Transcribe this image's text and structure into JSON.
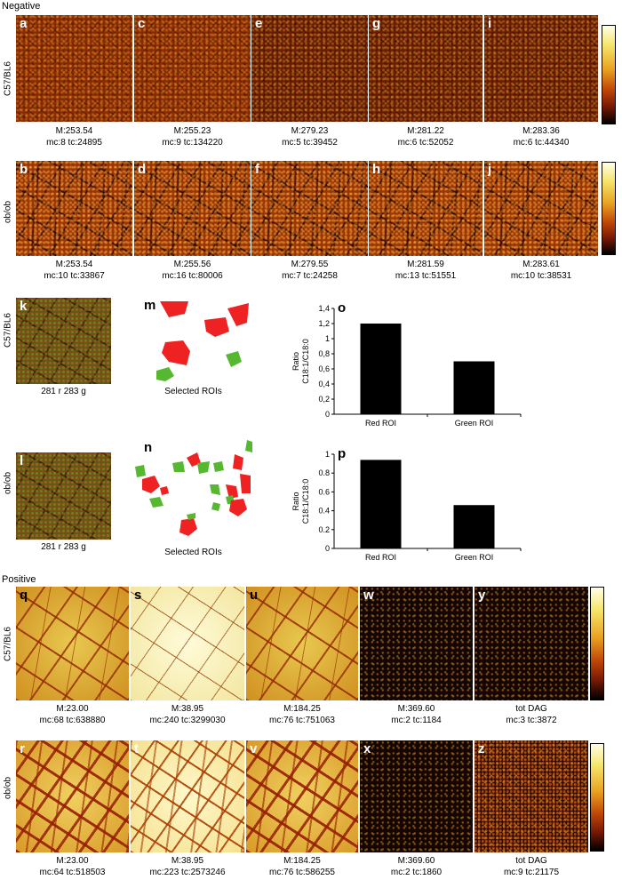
{
  "sections": {
    "negative": "Negative",
    "positive": "Positive"
  },
  "row_labels": {
    "c57": "C57/BL6",
    "obob": "ob/ob"
  },
  "neg_c57": [
    {
      "letter": "a",
      "line1": "M:253.54",
      "line2": "mc:8 tc:24895"
    },
    {
      "letter": "c",
      "line1": "M:255.23",
      "line2": "mc:9 tc:134220"
    },
    {
      "letter": "e",
      "line1": "M:279.23",
      "line2": "mc:5 tc:39452"
    },
    {
      "letter": "g",
      "line1": "M:281.22",
      "line2": "mc:6 tc:52052"
    },
    {
      "letter": "i",
      "line1": "M:283.36",
      "line2": "mc:6 tc:44340"
    }
  ],
  "neg_obob": [
    {
      "letter": "b",
      "line1": "M:253.54",
      "line2": "mc:10 tc:33867"
    },
    {
      "letter": "d",
      "line1": "M:255.56",
      "line2": "mc:16 tc:80006"
    },
    {
      "letter": "f",
      "line1": "M:279.55",
      "line2": "mc:7 tc:24258"
    },
    {
      "letter": "h",
      "line1": "M:281.59",
      "line2": "mc:13 tc:51551"
    },
    {
      "letter": "j",
      "line1": "M:283.61",
      "line2": "mc:10 tc:38531"
    }
  ],
  "overlay": {
    "k": {
      "letter": "k",
      "caption": "281 r 283 g"
    },
    "l": {
      "letter": "l",
      "caption": "281 r 283 g"
    },
    "m": {
      "letter": "m",
      "caption": "Selected ROIs"
    },
    "n": {
      "letter": "n",
      "caption": "Selected ROIs"
    }
  },
  "chart_data": [
    {
      "panel": "o",
      "type": "bar",
      "categories": [
        "Red ROI",
        "Green ROI"
      ],
      "values": [
        1.2,
        0.7
      ],
      "ylabel_line1": "Ratio",
      "ylabel_line2": "C18:1/C18:0",
      "ylim": [
        0,
        1.4
      ],
      "yticks": [
        "0",
        "0,2",
        "0,4",
        "0,6",
        "0,8",
        "1",
        "1,2",
        "1,4"
      ]
    },
    {
      "panel": "p",
      "type": "bar",
      "categories": [
        "Red ROI",
        "Green ROI"
      ],
      "values": [
        0.94,
        0.46
      ],
      "ylabel_line1": "Ratio",
      "ylabel_line2": "C18:1/C18:0",
      "ylim": [
        0,
        1
      ],
      "yticks": [
        "0",
        "0.2",
        "0.4",
        "0.6",
        "0.8",
        "1"
      ]
    }
  ],
  "pos_c57": [
    {
      "letter": "q",
      "line1": "M:23.00",
      "line2": "mc:68 tc:638880"
    },
    {
      "letter": "s",
      "line1": "M:38.95",
      "line2": "mc:240 tc:3299030"
    },
    {
      "letter": "u",
      "line1": "M:184.25",
      "line2": "mc:76 tc:751063"
    },
    {
      "letter": "w",
      "line1": "M:369.60",
      "line2": "mc:2 tc:1184"
    },
    {
      "letter": "y",
      "line1": "tot DAG",
      "line2": "mc:3 tc:3872"
    }
  ],
  "pos_obob": [
    {
      "letter": "r",
      "line1": "M:23.00",
      "line2": "mc:64 tc:518503"
    },
    {
      "letter": "t",
      "line1": "M:38.95",
      "line2": "mc:223 tc:2573246"
    },
    {
      "letter": "v",
      "line1": "M:184.25",
      "line2": "mc:76 tc:586255"
    },
    {
      "letter": "x",
      "line1": "M:369.60",
      "line2": "mc:2 tc:1860"
    },
    {
      "letter": "z",
      "line1": "tot DAG",
      "line2": "mc:9 tc:21175"
    }
  ],
  "colors": {
    "bar": "#000000",
    "roi_red": "#ee2222",
    "roi_green": "#55b830"
  }
}
